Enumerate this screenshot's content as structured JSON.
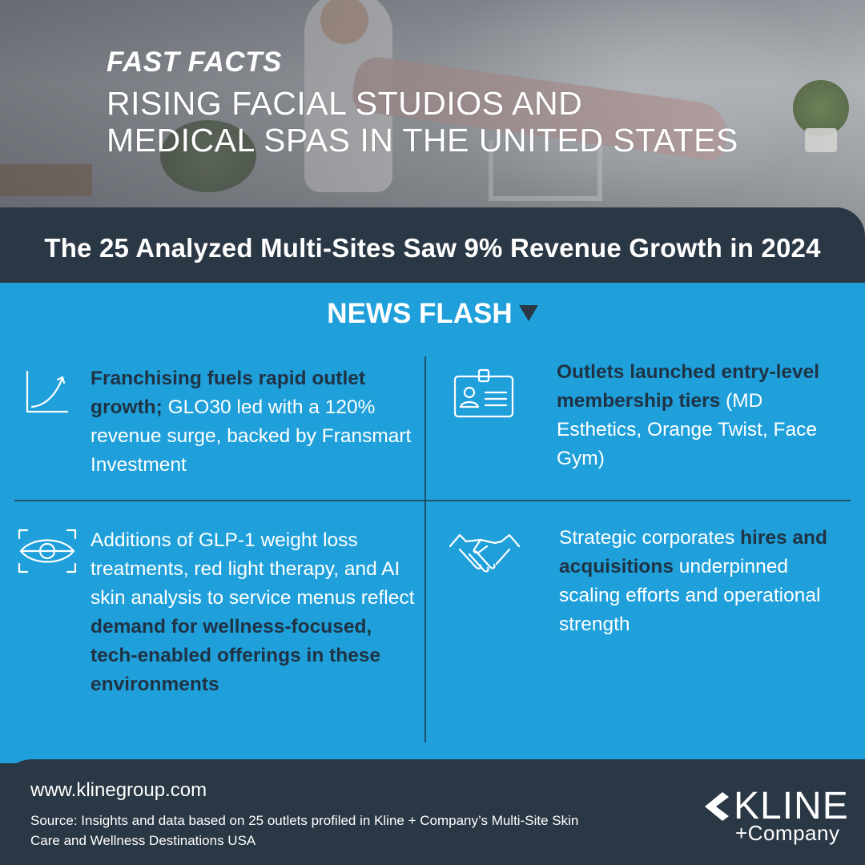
{
  "hero": {
    "kicker": "FAST FACTS",
    "headline_line1": "RISING FACIAL STUDIOS AND",
    "headline_line2": "MEDICAL SPAS IN THE UNITED STATES"
  },
  "band": {
    "title": "The 25 Analyzed Multi-Sites Saw 9% Revenue Growth in 2024"
  },
  "news_flash": {
    "label": "NEWS FLASH"
  },
  "facts": [
    {
      "icon": "growth-chart-icon",
      "bold": "Franchising fuels rapid outlet growth;",
      "text": " GLO30 led with a 120% revenue surge, backed by Fransmart Investment"
    },
    {
      "icon": "id-card-icon",
      "bold": "Outlets launched entry-level membership tiers",
      "text": " (MD Esthetics, Orange Twist, Face Gym)"
    },
    {
      "icon": "eye-scan-icon",
      "text": "Additions of GLP-1 weight loss treatments, red light therapy, and AI skin analysis to service menus reflect ",
      "bold": "demand for wellness-focused, tech-enabled offerings in these environments"
    },
    {
      "icon": "handshake-icon",
      "text_before": "Strategic corporates ",
      "bold": "hires and acquisitions",
      "text_after": " underpinned scaling efforts and operational strength"
    }
  ],
  "footer": {
    "url": "www.klinegroup.com",
    "source": "Source: Insights and data based on 25 outlets profiled in Kline + Company’s Multi-Site Skin Care and Wellness Destinations USA"
  },
  "logo": {
    "name": "KLINE",
    "company": "+Company"
  },
  "colors": {
    "navy": "#2a3744",
    "blue": "#1fa0db",
    "dark_text": "#1f3344"
  }
}
